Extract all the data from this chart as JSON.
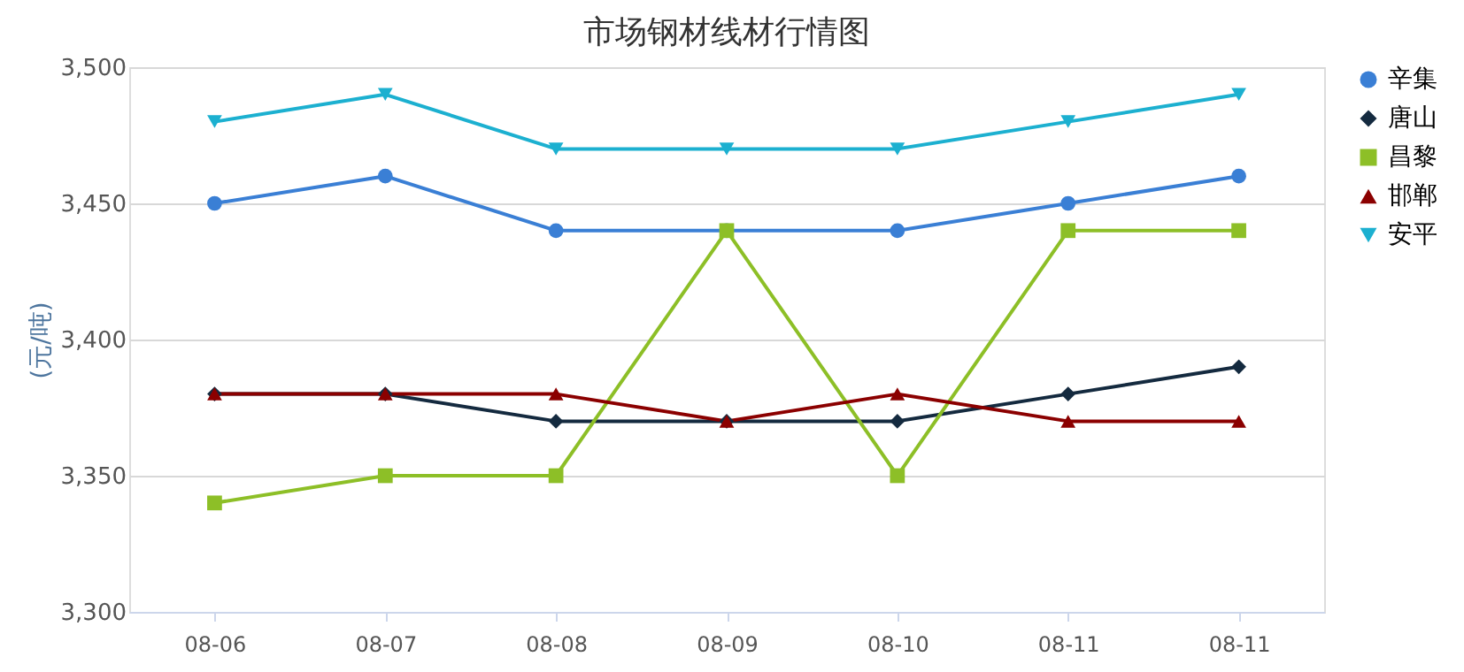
{
  "chart_data": {
    "type": "line",
    "title": "市场钢材线材行情图",
    "ylabel": "(元/吨)",
    "categories": [
      "08-06",
      "08-07",
      "08-08",
      "08-09",
      "08-10",
      "08-11",
      "08-11"
    ],
    "series": [
      {
        "name": "辛集",
        "color": "#3a7fd5",
        "marker": "circle",
        "values": [
          3450,
          3460,
          3440,
          3440,
          3440,
          3450,
          3460
        ]
      },
      {
        "name": "唐山",
        "color": "#142a3f",
        "marker": "diamond",
        "values": [
          3380,
          3380,
          3370,
          3370,
          3370,
          3380,
          3390
        ]
      },
      {
        "name": "昌黎",
        "color": "#8dbf27",
        "marker": "square",
        "values": [
          3340,
          3350,
          3350,
          3440,
          3350,
          3440,
          3440
        ]
      },
      {
        "name": "邯郸",
        "color": "#8b0000",
        "marker": "triangle",
        "values": [
          3380,
          3380,
          3380,
          3370,
          3380,
          3370,
          3370
        ]
      },
      {
        "name": "安平",
        "color": "#1cb0d0",
        "marker": "triangle-down",
        "values": [
          3480,
          3490,
          3470,
          3470,
          3470,
          3480,
          3490
        ]
      }
    ],
    "ylim": [
      3300,
      3500
    ],
    "yticks": [
      {
        "value": 3300,
        "label": "3,300"
      },
      {
        "value": 3350,
        "label": "3,350"
      },
      {
        "value": 3400,
        "label": "3,400"
      },
      {
        "value": 3450,
        "label": "3,450"
      },
      {
        "value": 3500,
        "label": "3,500"
      }
    ],
    "grid": "y",
    "legend": "right",
    "line_style": "solid"
  }
}
